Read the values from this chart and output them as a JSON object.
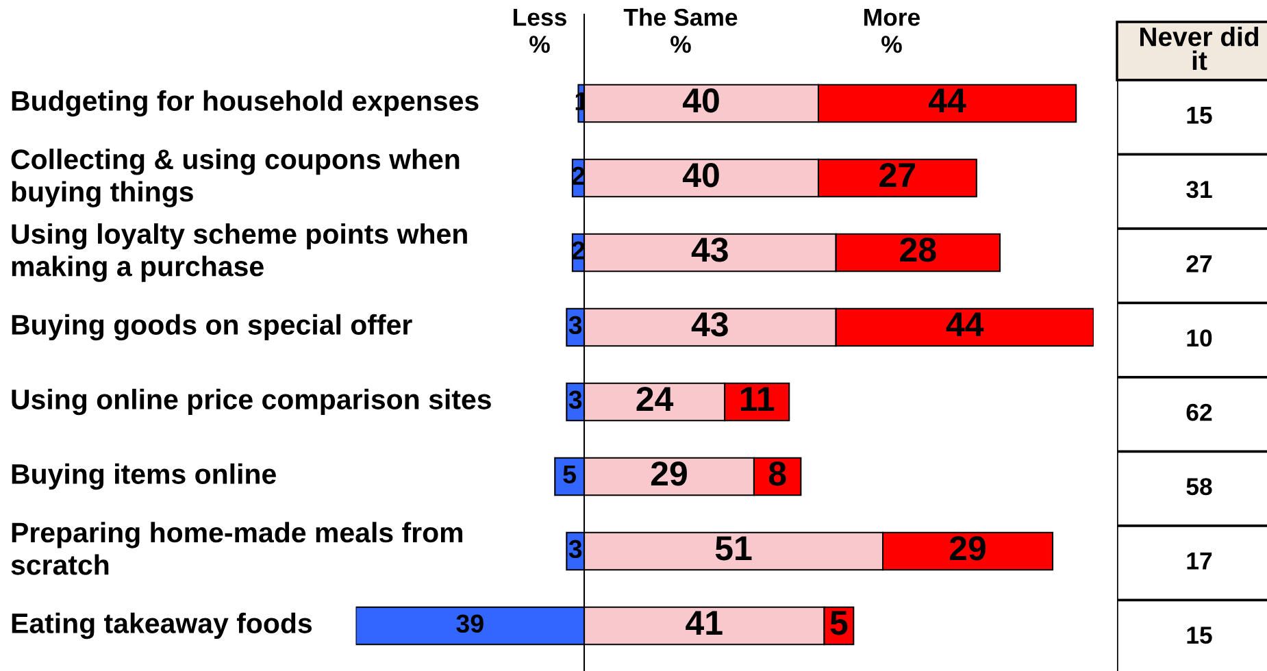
{
  "chart_data": [
    {
      "type": "bar",
      "orientation": "horizontal",
      "categories": [
        "Budgeting for household expenses",
        "Collecting & using coupons when\nbuying things",
        "Using loyalty scheme points when\nmaking a purchase",
        "Buying goods on special offer",
        "Using online price comparison sites",
        "Buying items online",
        "Preparing home-made meals from\nscratch",
        "Eating takeaway foods"
      ],
      "series": [
        {
          "name": "Less\n%",
          "color": "#3366ff",
          "values": [
            1,
            2,
            2,
            3,
            3,
            5,
            3,
            39
          ]
        }
      ],
      "data_labels": true
    },
    {
      "type": "bar",
      "orientation": "horizontal",
      "stacked": true,
      "categories": [
        null,
        null,
        null,
        null,
        null,
        null,
        null,
        null
      ],
      "series": [
        {
          "name": "The Same\n%",
          "color": "#f8c8cc",
          "values": [
            40,
            40,
            43,
            43,
            24,
            29,
            51,
            41
          ]
        },
        {
          "name": "More\n%",
          "color": "#ff0000",
          "values": [
            44,
            27,
            28,
            44,
            11,
            8,
            29,
            5
          ]
        }
      ],
      "data_labels": true
    },
    {
      "type": "other",
      "title": "Never did\nit",
      "values": [
        15,
        31,
        27,
        10,
        62,
        58,
        17,
        15
      ],
      "data_labels": true
    }
  ]
}
